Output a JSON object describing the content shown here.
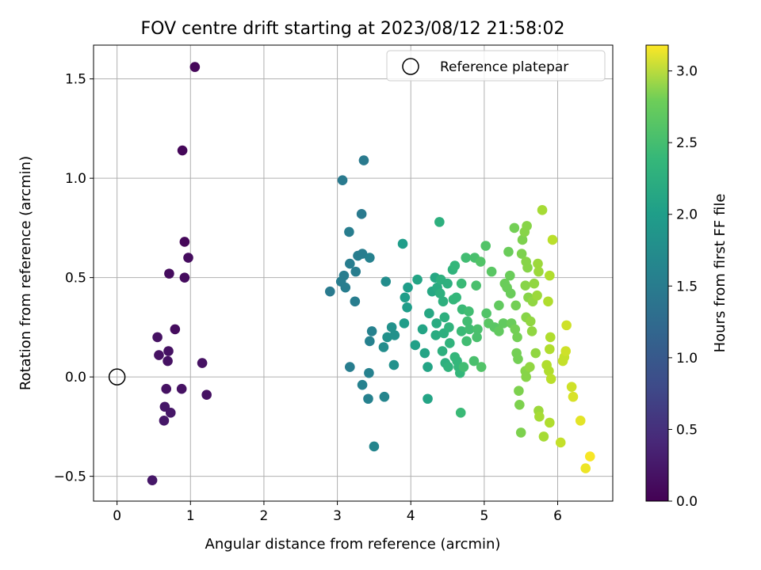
{
  "chart_data": {
    "type": "scatter",
    "title": "FOV centre drift starting at 2023/08/12 21:58:02",
    "xlabel": "Angular distance from reference (arcmin)",
    "ylabel": "Rotation from reference (arcmin)",
    "xlim": [
      -0.32,
      6.75
    ],
    "ylim": [
      -0.625,
      1.67
    ],
    "xticks": [
      0,
      1,
      2,
      3,
      4,
      5,
      6
    ],
    "xtick_labels": [
      "0",
      "1",
      "2",
      "3",
      "4",
      "5",
      "6"
    ],
    "yticks": [
      -0.5,
      0.0,
      0.5,
      1.0,
      1.5
    ],
    "ytick_labels": [
      "−0.5",
      "0.0",
      "0.5",
      "1.0",
      "1.5"
    ],
    "grid": true,
    "legend": {
      "placement": "top-right",
      "entries": [
        "Reference platepar"
      ]
    },
    "reference_point": {
      "x": 0.0,
      "y": 0.0
    },
    "colorbar": {
      "label": "Hours from first FF file",
      "colormap": "viridis",
      "range": [
        0.0,
        3.18
      ],
      "ticks": [
        0.0,
        0.5,
        1.0,
        1.5,
        2.0,
        2.5,
        3.0
      ],
      "tick_labels": [
        "0.0",
        "0.5",
        "1.0",
        "1.5",
        "2.0",
        "2.5",
        "3.0"
      ]
    },
    "points": [
      {
        "x": 1.06,
        "y": 1.56,
        "c": 0.05
      },
      {
        "x": 0.89,
        "y": 1.14,
        "c": 0.05
      },
      {
        "x": 0.92,
        "y": 0.68,
        "c": 0.05
      },
      {
        "x": 0.97,
        "y": 0.6,
        "c": 0.1
      },
      {
        "x": 0.71,
        "y": 0.52,
        "c": 0.1
      },
      {
        "x": 0.92,
        "y": 0.5,
        "c": 0.1
      },
      {
        "x": 0.79,
        "y": 0.24,
        "c": 0.1
      },
      {
        "x": 0.55,
        "y": 0.2,
        "c": 0.15
      },
      {
        "x": 0.57,
        "y": 0.11,
        "c": 0.15
      },
      {
        "x": 0.7,
        "y": 0.13,
        "c": 0.15
      },
      {
        "x": 0.69,
        "y": 0.08,
        "c": 0.15
      },
      {
        "x": 1.16,
        "y": 0.07,
        "c": 0.15
      },
      {
        "x": 0.67,
        "y": -0.06,
        "c": 0.15
      },
      {
        "x": 0.88,
        "y": -0.06,
        "c": 0.15
      },
      {
        "x": 1.22,
        "y": -0.09,
        "c": 0.15
      },
      {
        "x": 0.65,
        "y": -0.15,
        "c": 0.2
      },
      {
        "x": 0.73,
        "y": -0.18,
        "c": 0.2
      },
      {
        "x": 0.64,
        "y": -0.22,
        "c": 0.2
      },
      {
        "x": 0.48,
        "y": -0.52,
        "c": 0.2
      },
      {
        "x": 3.36,
        "y": 1.09,
        "c": 1.3
      },
      {
        "x": 3.07,
        "y": 0.99,
        "c": 1.3
      },
      {
        "x": 3.33,
        "y": 0.82,
        "c": 1.3
      },
      {
        "x": 3.16,
        "y": 0.73,
        "c": 1.35
      },
      {
        "x": 3.28,
        "y": 0.61,
        "c": 1.35
      },
      {
        "x": 3.34,
        "y": 0.62,
        "c": 1.35
      },
      {
        "x": 3.44,
        "y": 0.6,
        "c": 1.4
      },
      {
        "x": 3.17,
        "y": 0.57,
        "c": 1.35
      },
      {
        "x": 3.25,
        "y": 0.53,
        "c": 1.35
      },
      {
        "x": 3.09,
        "y": 0.51,
        "c": 1.35
      },
      {
        "x": 3.05,
        "y": 0.48,
        "c": 1.35
      },
      {
        "x": 3.11,
        "y": 0.45,
        "c": 1.35
      },
      {
        "x": 2.9,
        "y": 0.43,
        "c": 1.3
      },
      {
        "x": 3.24,
        "y": 0.38,
        "c": 1.35
      },
      {
        "x": 3.47,
        "y": 0.23,
        "c": 1.4
      },
      {
        "x": 3.44,
        "y": 0.18,
        "c": 1.4
      },
      {
        "x": 3.17,
        "y": 0.05,
        "c": 1.35
      },
      {
        "x": 3.43,
        "y": 0.02,
        "c": 1.4
      },
      {
        "x": 3.34,
        "y": -0.04,
        "c": 1.4
      },
      {
        "x": 3.42,
        "y": -0.11,
        "c": 1.4
      },
      {
        "x": 3.64,
        "y": -0.1,
        "c": 1.45
      },
      {
        "x": 3.5,
        "y": -0.35,
        "c": 1.45
      },
      {
        "x": 3.66,
        "y": 0.48,
        "c": 1.55
      },
      {
        "x": 3.63,
        "y": 0.15,
        "c": 1.55
      },
      {
        "x": 3.68,
        "y": 0.2,
        "c": 1.6
      },
      {
        "x": 3.74,
        "y": 0.25,
        "c": 1.6
      },
      {
        "x": 3.78,
        "y": 0.21,
        "c": 1.6
      },
      {
        "x": 3.77,
        "y": 0.06,
        "c": 1.6
      },
      {
        "x": 3.89,
        "y": 0.67,
        "c": 1.75
      },
      {
        "x": 3.92,
        "y": 0.4,
        "c": 1.75
      },
      {
        "x": 3.96,
        "y": 0.45,
        "c": 1.75
      },
      {
        "x": 3.95,
        "y": 0.35,
        "c": 1.75
      },
      {
        "x": 3.91,
        "y": 0.27,
        "c": 1.75
      },
      {
        "x": 4.06,
        "y": 0.16,
        "c": 1.8
      },
      {
        "x": 4.09,
        "y": 0.49,
        "c": 1.85
      },
      {
        "x": 4.16,
        "y": 0.24,
        "c": 1.85
      },
      {
        "x": 4.19,
        "y": 0.12,
        "c": 1.85
      },
      {
        "x": 4.23,
        "y": 0.05,
        "c": 1.85
      },
      {
        "x": 4.23,
        "y": -0.11,
        "c": 1.85
      },
      {
        "x": 4.25,
        "y": 0.32,
        "c": 1.9
      },
      {
        "x": 4.29,
        "y": 0.43,
        "c": 1.9
      },
      {
        "x": 4.33,
        "y": 0.5,
        "c": 1.9
      },
      {
        "x": 4.36,
        "y": 0.45,
        "c": 1.95
      },
      {
        "x": 4.39,
        "y": 0.78,
        "c": 2.0
      },
      {
        "x": 4.41,
        "y": 0.49,
        "c": 2.0
      },
      {
        "x": 4.35,
        "y": 0.27,
        "c": 1.95
      },
      {
        "x": 4.34,
        "y": 0.21,
        "c": 1.95
      },
      {
        "x": 4.4,
        "y": 0.42,
        "c": 2.0
      },
      {
        "x": 4.44,
        "y": 0.38,
        "c": 2.0
      },
      {
        "x": 4.46,
        "y": 0.3,
        "c": 2.0
      },
      {
        "x": 4.45,
        "y": 0.22,
        "c": 2.0
      },
      {
        "x": 4.43,
        "y": 0.13,
        "c": 2.0
      },
      {
        "x": 4.47,
        "y": 0.07,
        "c": 2.0
      },
      {
        "x": 4.5,
        "y": 0.47,
        "c": 2.0
      },
      {
        "x": 4.52,
        "y": 0.25,
        "c": 2.05
      },
      {
        "x": 4.53,
        "y": 0.17,
        "c": 2.05
      },
      {
        "x": 4.51,
        "y": 0.05,
        "c": 2.05
      },
      {
        "x": 4.57,
        "y": 0.54,
        "c": 2.05
      },
      {
        "x": 4.6,
        "y": 0.56,
        "c": 2.1
      },
      {
        "x": 4.58,
        "y": 0.39,
        "c": 2.1
      },
      {
        "x": 4.62,
        "y": 0.4,
        "c": 2.1
      },
      {
        "x": 4.6,
        "y": 0.1,
        "c": 2.1
      },
      {
        "x": 4.63,
        "y": 0.08,
        "c": 2.1
      },
      {
        "x": 4.65,
        "y": 0.05,
        "c": 2.1
      },
      {
        "x": 4.67,
        "y": 0.02,
        "c": 2.1
      },
      {
        "x": 4.68,
        "y": -0.18,
        "c": 2.15
      },
      {
        "x": 4.69,
        "y": 0.47,
        "c": 2.15
      },
      {
        "x": 4.7,
        "y": 0.34,
        "c": 2.15
      },
      {
        "x": 4.69,
        "y": 0.23,
        "c": 2.15
      },
      {
        "x": 4.75,
        "y": 0.6,
        "c": 2.2
      },
      {
        "x": 4.77,
        "y": 0.28,
        "c": 2.2
      },
      {
        "x": 4.76,
        "y": 0.18,
        "c": 2.2
      },
      {
        "x": 4.8,
        "y": 0.24,
        "c": 2.2
      },
      {
        "x": 4.79,
        "y": 0.33,
        "c": 2.2
      },
      {
        "x": 4.72,
        "y": 0.05,
        "c": 2.2
      },
      {
        "x": 4.87,
        "y": 0.6,
        "c": 2.25
      },
      {
        "x": 4.89,
        "y": 0.46,
        "c": 2.25
      },
      {
        "x": 4.91,
        "y": 0.24,
        "c": 2.25
      },
      {
        "x": 4.9,
        "y": 0.2,
        "c": 2.25
      },
      {
        "x": 4.86,
        "y": 0.08,
        "c": 2.25
      },
      {
        "x": 4.95,
        "y": 0.58,
        "c": 2.3
      },
      {
        "x": 4.96,
        "y": 0.05,
        "c": 2.3
      },
      {
        "x": 5.02,
        "y": 0.66,
        "c": 2.3
      },
      {
        "x": 5.03,
        "y": 0.32,
        "c": 2.3
      },
      {
        "x": 5.06,
        "y": 0.27,
        "c": 2.35
      },
      {
        "x": 5.1,
        "y": 0.53,
        "c": 2.35
      },
      {
        "x": 5.14,
        "y": 0.25,
        "c": 2.35
      },
      {
        "x": 5.2,
        "y": 0.36,
        "c": 2.4
      },
      {
        "x": 5.2,
        "y": 0.23,
        "c": 2.4
      },
      {
        "x": 5.26,
        "y": 0.27,
        "c": 2.4
      },
      {
        "x": 5.28,
        "y": 0.47,
        "c": 2.45
      },
      {
        "x": 5.31,
        "y": 0.45,
        "c": 2.45
      },
      {
        "x": 5.33,
        "y": 0.63,
        "c": 2.45
      },
      {
        "x": 5.35,
        "y": 0.51,
        "c": 2.45
      },
      {
        "x": 5.36,
        "y": 0.42,
        "c": 2.45
      },
      {
        "x": 5.37,
        "y": 0.27,
        "c": 2.45
      },
      {
        "x": 5.41,
        "y": 0.75,
        "c": 2.5
      },
      {
        "x": 5.43,
        "y": 0.36,
        "c": 2.5
      },
      {
        "x": 5.42,
        "y": 0.24,
        "c": 2.5
      },
      {
        "x": 5.45,
        "y": 0.2,
        "c": 2.5
      },
      {
        "x": 5.44,
        "y": 0.12,
        "c": 2.5
      },
      {
        "x": 5.46,
        "y": 0.09,
        "c": 2.5
      },
      {
        "x": 5.47,
        "y": -0.07,
        "c": 2.55
      },
      {
        "x": 5.48,
        "y": -0.14,
        "c": 2.55
      },
      {
        "x": 5.5,
        "y": -0.28,
        "c": 2.55
      },
      {
        "x": 5.51,
        "y": 0.62,
        "c": 2.55
      },
      {
        "x": 5.52,
        "y": 0.69,
        "c": 2.55
      },
      {
        "x": 5.55,
        "y": 0.73,
        "c": 2.6
      },
      {
        "x": 5.58,
        "y": 0.76,
        "c": 2.6
      },
      {
        "x": 5.57,
        "y": 0.58,
        "c": 2.6
      },
      {
        "x": 5.59,
        "y": 0.55,
        "c": 2.6
      },
      {
        "x": 5.56,
        "y": 0.46,
        "c": 2.6
      },
      {
        "x": 5.6,
        "y": 0.4,
        "c": 2.6
      },
      {
        "x": 5.57,
        "y": 0.3,
        "c": 2.6
      },
      {
        "x": 5.56,
        "y": 0.03,
        "c": 2.6
      },
      {
        "x": 5.57,
        "y": 0.0,
        "c": 2.6
      },
      {
        "x": 5.62,
        "y": 0.05,
        "c": 2.65
      },
      {
        "x": 5.63,
        "y": 0.28,
        "c": 2.65
      },
      {
        "x": 5.65,
        "y": 0.23,
        "c": 2.65
      },
      {
        "x": 5.66,
        "y": 0.38,
        "c": 2.65
      },
      {
        "x": 5.68,
        "y": 0.47,
        "c": 2.65
      },
      {
        "x": 5.7,
        "y": 0.12,
        "c": 2.65
      },
      {
        "x": 5.72,
        "y": 0.41,
        "c": 2.7
      },
      {
        "x": 5.73,
        "y": 0.57,
        "c": 2.7
      },
      {
        "x": 5.74,
        "y": 0.53,
        "c": 2.7
      },
      {
        "x": 5.74,
        "y": -0.17,
        "c": 2.7
      },
      {
        "x": 5.75,
        "y": -0.2,
        "c": 2.75
      },
      {
        "x": 5.79,
        "y": 0.84,
        "c": 2.75
      },
      {
        "x": 5.81,
        "y": -0.3,
        "c": 2.75
      },
      {
        "x": 5.85,
        "y": 0.06,
        "c": 2.8
      },
      {
        "x": 5.87,
        "y": 0.38,
        "c": 2.8
      },
      {
        "x": 5.89,
        "y": 0.51,
        "c": 2.8
      },
      {
        "x": 5.88,
        "y": 0.03,
        "c": 2.8
      },
      {
        "x": 5.9,
        "y": 0.2,
        "c": 2.8
      },
      {
        "x": 5.89,
        "y": 0.14,
        "c": 2.8
      },
      {
        "x": 5.89,
        "y": -0.23,
        "c": 2.8
      },
      {
        "x": 5.91,
        "y": -0.01,
        "c": 2.85
      },
      {
        "x": 5.93,
        "y": 0.69,
        "c": 2.85
      },
      {
        "x": 6.04,
        "y": -0.33,
        "c": 2.9
      },
      {
        "x": 6.07,
        "y": 0.08,
        "c": 2.9
      },
      {
        "x": 6.09,
        "y": 0.1,
        "c": 2.9
      },
      {
        "x": 6.11,
        "y": 0.13,
        "c": 2.95
      },
      {
        "x": 6.12,
        "y": 0.26,
        "c": 2.95
      },
      {
        "x": 6.19,
        "y": -0.05,
        "c": 2.95
      },
      {
        "x": 6.21,
        "y": -0.1,
        "c": 3.0
      },
      {
        "x": 6.31,
        "y": -0.22,
        "c": 3.05
      },
      {
        "x": 6.38,
        "y": -0.46,
        "c": 3.1
      },
      {
        "x": 6.44,
        "y": -0.4,
        "c": 3.15
      }
    ]
  }
}
